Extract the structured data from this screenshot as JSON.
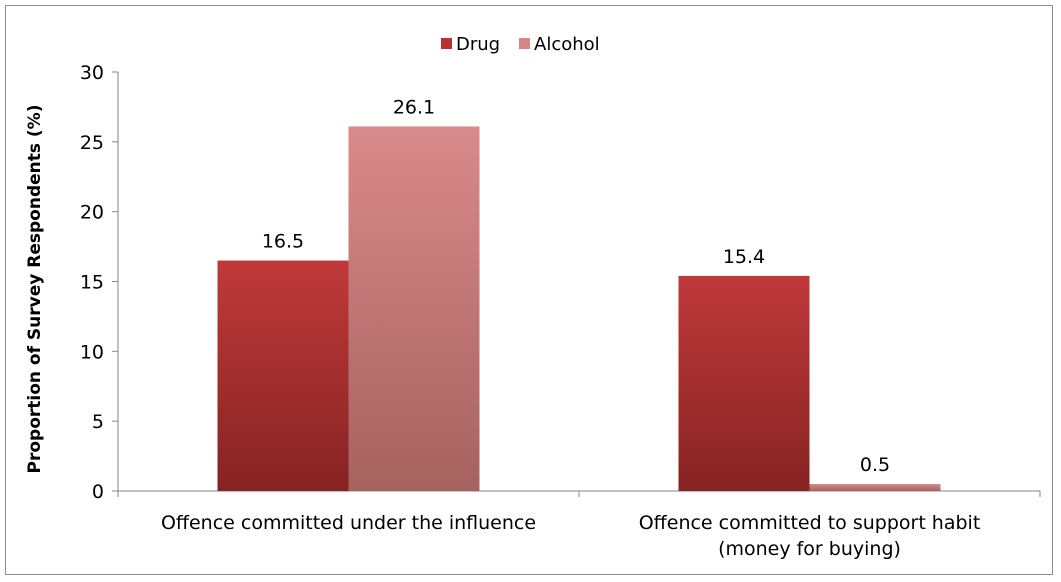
{
  "chart_data": {
    "type": "bar",
    "title": "",
    "xlabel": "",
    "ylabel": "Proportion of Survey Respondents (%)",
    "ylim": [
      0,
      30
    ],
    "yticks": [
      0,
      5,
      10,
      15,
      20,
      25,
      30
    ],
    "grid": false,
    "legend_position": "top-center",
    "categories": [
      [
        "Offence committed under the influence"
      ],
      [
        "Offence committed to support habit",
        "(money for buying)"
      ]
    ],
    "series": [
      {
        "name": "Drug",
        "values": [
          16.5,
          15.4
        ],
        "labels": [
          "16.5",
          "15.4"
        ],
        "color_top": "#c0393a",
        "color_bottom": "#862322",
        "legend_color": "#b83232"
      },
      {
        "name": "Alcohol",
        "values": [
          26.1,
          0.5
        ],
        "labels": [
          "26.1",
          "0.5"
        ],
        "color_top": "#d98a8a",
        "color_bottom": "#a6625f",
        "legend_color": "#d98585"
      }
    ]
  }
}
